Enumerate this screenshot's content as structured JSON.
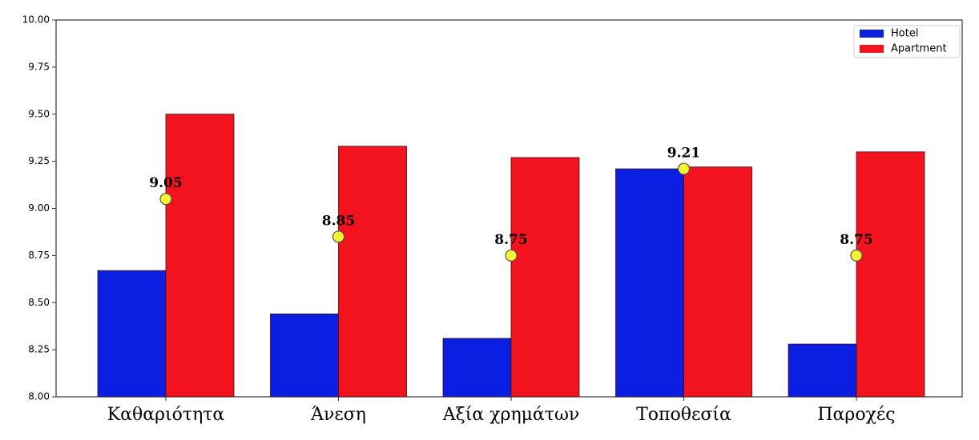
{
  "chart_data": {
    "type": "bar",
    "categories": [
      "Καθαριότητα",
      "Άνεση",
      "Αξία χρημάτων",
      "Τοποθεσία",
      "Παροχές"
    ],
    "series": [
      {
        "name": "Hotel",
        "color": "#0b1fe3",
        "values": [
          8.67,
          8.44,
          8.31,
          9.21,
          8.28
        ]
      },
      {
        "name": "Apartment",
        "color": "#f2131f",
        "values": [
          9.5,
          9.33,
          9.27,
          9.22,
          9.3
        ]
      }
    ],
    "points": {
      "color": "#f5f532",
      "values": [
        9.05,
        8.85,
        8.75,
        9.21,
        8.75
      ]
    },
    "ylim": [
      8,
      10
    ],
    "yticks": [
      {
        "value": 8,
        "label": "8.00"
      },
      {
        "value": 8.25,
        "label": "8.25"
      },
      {
        "value": 8.5,
        "label": "8.50"
      },
      {
        "value": 8.75,
        "label": "8.75"
      },
      {
        "value": 9,
        "label": "9.00"
      },
      {
        "value": 9.25,
        "label": "9.25"
      },
      {
        "value": 9.5,
        "label": "9.50"
      },
      {
        "value": 9.75,
        "label": "9.75"
      },
      {
        "value": 10,
        "label": "10.00"
      }
    ],
    "grid": false,
    "legend": "upper right"
  }
}
